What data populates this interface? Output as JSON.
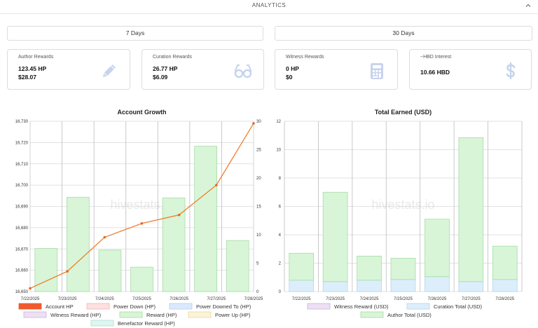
{
  "header": {
    "title": "ANALYTICS",
    "collapse_icon": "chevron-up-icon"
  },
  "periods": [
    {
      "label": "7 Days"
    },
    {
      "label": "30 Days"
    }
  ],
  "cards": [
    {
      "label": "Author Rewards",
      "value1": "123.45 HP",
      "value2": "$28.07",
      "icon": "pencil-icon"
    },
    {
      "label": "Curation Rewards",
      "value1": "26.77 HP",
      "value2": "$6.09",
      "icon": "glasses-icon"
    },
    {
      "label": "Witness Rewards",
      "value1": "0 HP",
      "value2": "$0",
      "icon": "calculator-icon"
    },
    {
      "label": "~HBD Interest",
      "value1": "10.66 HBD",
      "icon": "dollar-icon"
    }
  ],
  "colors": {
    "icon": "#c7d3ee",
    "line": "#ef7d2e",
    "bar_green": "#d8f5d8",
    "bar_green_border": "#a6dca6",
    "bar_blue": "#dceefb"
  },
  "chart_data": [
    {
      "type": "bar",
      "title": "Account Growth",
      "categories": [
        "7/22/2025",
        "7/23/2025",
        "7/24/2025",
        "7/25/2025",
        "7/26/2025",
        "7/27/2025",
        "7/28/2025"
      ],
      "ylim_left": [
        16650,
        16730
      ],
      "yticks_left": [
        "16,650",
        "16,660",
        "16,670",
        "16,680",
        "16,690",
        "16,700",
        "16,710",
        "16,720",
        "16,730"
      ],
      "ylim_right": [
        0,
        30
      ],
      "yticks_right": [
        "0",
        "5",
        "10",
        "15",
        "20",
        "25",
        "30"
      ],
      "watermark": "hivestats.io",
      "series": [
        {
          "name": "Account HP",
          "type": "line",
          "axis": "left",
          "values": [
            16651.5,
            16659.5,
            16675.5,
            16682,
            16686,
            16700,
            16729
          ]
        },
        {
          "name": "Power Down (HP)",
          "values": [
            0,
            0,
            0,
            0,
            0,
            0,
            0
          ]
        },
        {
          "name": "Power Downed To (HP)",
          "values": [
            0,
            0,
            0,
            0,
            0,
            0,
            0
          ]
        },
        {
          "name": "Witness Reward (HP)",
          "values": [
            0,
            0,
            0,
            0,
            0,
            0,
            0
          ]
        },
        {
          "name": "Reward (HP)",
          "type": "bar",
          "axis": "right",
          "values": [
            7.6,
            16.6,
            7.3,
            4.3,
            16.5,
            25.6,
            9.0
          ]
        },
        {
          "name": "Power Up (HP)",
          "values": [
            0,
            0,
            0,
            0,
            0,
            0,
            0
          ]
        },
        {
          "name": "Benefactor Reward (HP)",
          "values": [
            0,
            0,
            0,
            0,
            0,
            0,
            0
          ]
        }
      ],
      "legend": [
        {
          "name": "Account HP",
          "fill": "#ef5a2e",
          "stroke": "#ef5a2e"
        },
        {
          "name": "Power Down (HP)",
          "fill": "#fde0e0",
          "stroke": "#f3b4b4"
        },
        {
          "name": "Power Downed To (HP)",
          "fill": "#dde9fb",
          "stroke": "#b3cdf3"
        },
        {
          "name": "Witness Reward (HP)",
          "fill": "#ece0f2",
          "stroke": "#cdb4dc"
        },
        {
          "name": "Reward (HP)",
          "fill": "#d8f5d8",
          "stroke": "#a6dca6"
        },
        {
          "name": "Power Up (HP)",
          "fill": "#fbf3d8",
          "stroke": "#ead79a"
        },
        {
          "name": "Benefactor Reward (HP)",
          "fill": "#dff5f0",
          "stroke": "#aee0d4"
        }
      ]
    },
    {
      "type": "bar",
      "title": "Total Earned (USD)",
      "stacked": true,
      "categories": [
        "7/22/2025",
        "7/23/2025",
        "7/24/2025",
        "7/25/2025",
        "7/26/2025",
        "7/27/2025",
        "7/28/2025"
      ],
      "ylim": [
        0,
        12
      ],
      "yticks": [
        "0",
        "2",
        "4",
        "6",
        "8",
        "10",
        "12"
      ],
      "watermark": "hivestats.io",
      "series": [
        {
          "name": "Witness Reward (USD)",
          "values": [
            0,
            0,
            0,
            0,
            0,
            0,
            0
          ]
        },
        {
          "name": "Curation Total (USD)",
          "values": [
            0.8,
            0.7,
            0.8,
            0.85,
            1.05,
            0.7,
            0.85
          ]
        },
        {
          "name": "Author Total (USD)",
          "values": [
            1.9,
            6.3,
            1.7,
            1.5,
            4.05,
            10.15,
            2.35
          ]
        }
      ],
      "legend": [
        {
          "name": "Witness Reward (USD)",
          "fill": "#ece0f2",
          "stroke": "#cdb4dc"
        },
        {
          "name": "Curation Total (USD)",
          "fill": "#dceefb",
          "stroke": "#b3d6ef"
        },
        {
          "name": "Author Total (USD)",
          "fill": "#d8f5d8",
          "stroke": "#a6dca6"
        }
      ]
    }
  ]
}
